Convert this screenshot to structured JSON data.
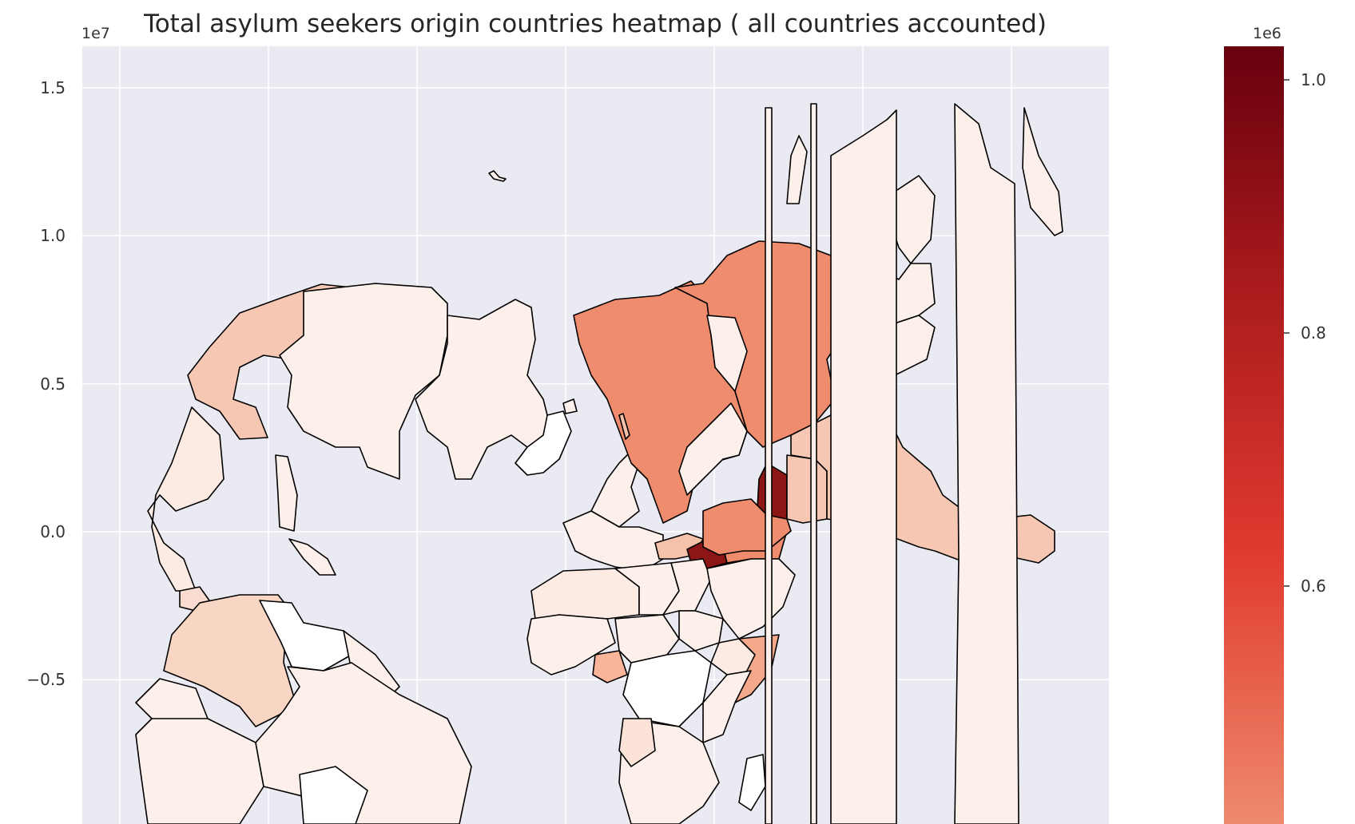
{
  "title": "Total asylum seekers origin countries heatmap ( all countries accounted)",
  "map": {
    "y_exponent_label": "1e7",
    "y_ticks": [
      {
        "value": 1.5,
        "label": "1.5"
      },
      {
        "value": 1.0,
        "label": "1.0"
      },
      {
        "value": 0.5,
        "label": "0.5"
      },
      {
        "value": 0.0,
        "label": "0.0"
      },
      {
        "value": -0.5,
        "label": "−0.5"
      }
    ],
    "ylim": [
      -1.0,
      1.65
    ],
    "x_gridline_count": 7,
    "grid": true,
    "background": "#eaeaf2",
    "edge_color": "#000000"
  },
  "colorbar": {
    "exponent_label": "1e6",
    "ticks": [
      {
        "value": 1.0,
        "label": "1.0"
      },
      {
        "value": 0.8,
        "label": "0.8"
      },
      {
        "value": 0.6,
        "label": "0.6"
      }
    ],
    "visible_range": [
      0.43,
      1.03
    ],
    "colormap": "Reds",
    "colors": {
      "low": "#fff5f0",
      "mid": "#e03a2f",
      "high": "#67000d"
    }
  }
}
